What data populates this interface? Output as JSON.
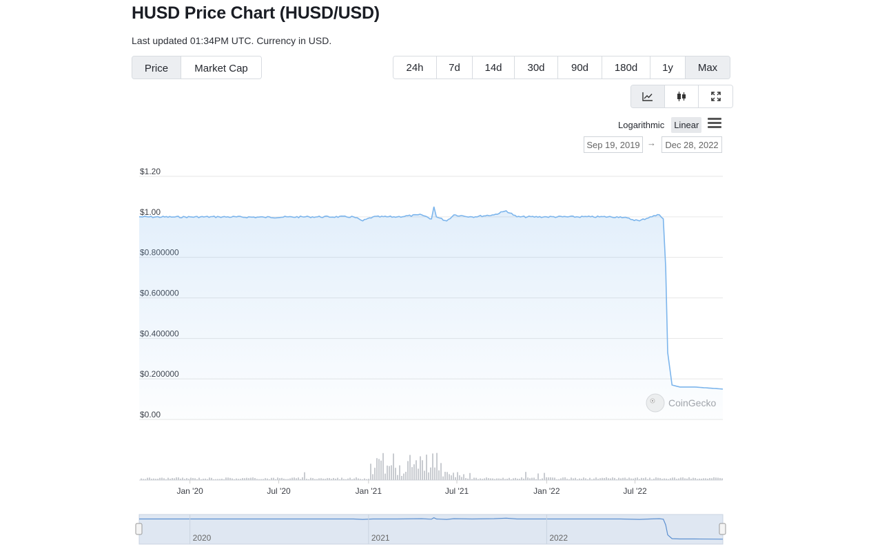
{
  "header": {
    "title": "HUSD Price Chart (HUSD/USD)",
    "subtitle": "Last updated 01:34PM UTC. Currency in USD."
  },
  "metric_tabs": [
    {
      "label": "Price",
      "active": true
    },
    {
      "label": "Market Cap",
      "active": false
    }
  ],
  "range_tabs": [
    {
      "label": "24h",
      "active": false
    },
    {
      "label": "7d",
      "active": false
    },
    {
      "label": "14d",
      "active": false
    },
    {
      "label": "30d",
      "active": false
    },
    {
      "label": "90d",
      "active": false
    },
    {
      "label": "180d",
      "active": false
    },
    {
      "label": "1y",
      "active": false
    },
    {
      "label": "Max",
      "active": true
    }
  ],
  "chart_types": [
    {
      "icon": "line-chart-icon",
      "active": true
    },
    {
      "icon": "candlestick-icon",
      "active": false
    },
    {
      "icon": "expand-icon",
      "active": false
    }
  ],
  "scale": {
    "options": [
      {
        "label": "Logarithmic",
        "active": false
      },
      {
        "label": "Linear",
        "active": true
      }
    ],
    "menu_icon": "hamburger-menu-icon"
  },
  "date_range": {
    "from": "Sep 19, 2019",
    "arrow": "→",
    "to": "Dec 28, 2022"
  },
  "watermark": "CoinGecko",
  "colors": {
    "line": "#7cb5ec",
    "volume": "#c8cbd0",
    "grid": "#e6e6e6",
    "navigator_fill": "#dbe4f0"
  },
  "chart_data": {
    "type": "line",
    "series": [
      {
        "values": [
          [
            "2019-09-19",
            1.0
          ],
          [
            "2019-12-01",
            0.999
          ],
          [
            "2020-03-01",
            1.0
          ],
          [
            "2020-06-01",
            0.998
          ],
          [
            "2020-09-01",
            1.0
          ],
          [
            "2020-12-01",
            1.0
          ],
          [
            "2020-12-20",
            0.98
          ],
          [
            "2021-01-10",
            1.0
          ],
          [
            "2021-03-01",
            1.0
          ],
          [
            "2021-04-20",
            1.01
          ],
          [
            "2021-05-10",
            0.99
          ],
          [
            "2021-05-15",
            1.05
          ],
          [
            "2021-05-20",
            1.0
          ],
          [
            "2021-06-10",
            0.98
          ],
          [
            "2021-06-25",
            1.01
          ],
          [
            "2021-08-01",
            1.0
          ],
          [
            "2021-09-15",
            1.01
          ],
          [
            "2021-10-10",
            1.03
          ],
          [
            "2021-11-01",
            1.0
          ],
          [
            "2022-01-01",
            1.0
          ],
          [
            "2022-04-01",
            1.0
          ],
          [
            "2022-06-01",
            1.0
          ],
          [
            "2022-07-10",
            0.98
          ],
          [
            "2022-08-01",
            1.0
          ],
          [
            "2022-08-20",
            1.01
          ],
          [
            "2022-08-28",
            0.99
          ],
          [
            "2022-09-02",
            0.75
          ],
          [
            "2022-09-06",
            0.33
          ],
          [
            "2022-09-15",
            0.17
          ],
          [
            "2022-10-01",
            0.16
          ],
          [
            "2022-11-01",
            0.16
          ],
          [
            "2022-12-28",
            0.15
          ]
        ]
      }
    ],
    "volume_peak_period": [
      "2021-01-01",
      "2021-06-01"
    ],
    "yaxis": {
      "ticks": [
        "$0.00",
        "$0.200000",
        "$0.400000",
        "$0.600000",
        "$0.800000",
        "$1.00",
        "$1.20"
      ],
      "range": [
        0,
        1.2
      ]
    },
    "xaxis": {
      "ticks": [
        {
          "label": "Jan '20",
          "date": "2020-01-01"
        },
        {
          "label": "Jul '20",
          "date": "2020-07-01"
        },
        {
          "label": "Jan '21",
          "date": "2021-01-01"
        },
        {
          "label": "Jul '21",
          "date": "2021-07-01"
        },
        {
          "label": "Jan '22",
          "date": "2022-01-01"
        },
        {
          "label": "Jul '22",
          "date": "2022-07-01"
        }
      ],
      "range": [
        "2019-09-19",
        "2022-12-28"
      ]
    },
    "navigator_ticks": [
      {
        "label": "2020",
        "date": "2020-01-01"
      },
      {
        "label": "2021",
        "date": "2021-01-01"
      },
      {
        "label": "2022",
        "date": "2022-01-01"
      }
    ],
    "grid": true
  }
}
